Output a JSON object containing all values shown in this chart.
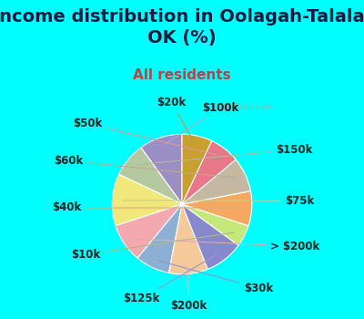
{
  "title": "Income distribution in Oolagah-Talala,\nOK (%)",
  "subtitle": "All residents",
  "background_color": "#00FFFF",
  "chart_bg_left": "#e8f5ee",
  "chart_bg_right": "#f0f8f0",
  "labels": [
    "$100k",
    "$150k",
    "$75k",
    "> $200k",
    "$30k",
    "$200k",
    "$125k",
    "$10k",
    "$40k",
    "$60k",
    "$50k",
    "$20k"
  ],
  "values": [
    10,
    8,
    12,
    9,
    8,
    9,
    9,
    5,
    8,
    8,
    7,
    7
  ],
  "colors": [
    "#9b8ec4",
    "#b5c9a0",
    "#f0e87a",
    "#f4a8b0",
    "#8eafd4",
    "#f5c99a",
    "#8888cc",
    "#c5e87a",
    "#f5a860",
    "#c4b8a0",
    "#e87888",
    "#c8a030"
  ],
  "startangle": 90,
  "title_fontsize": 14,
  "subtitle_fontsize": 11,
  "label_fontsize": 8.5,
  "title_color": "#1a1a40",
  "subtitle_color": "#c04040"
}
